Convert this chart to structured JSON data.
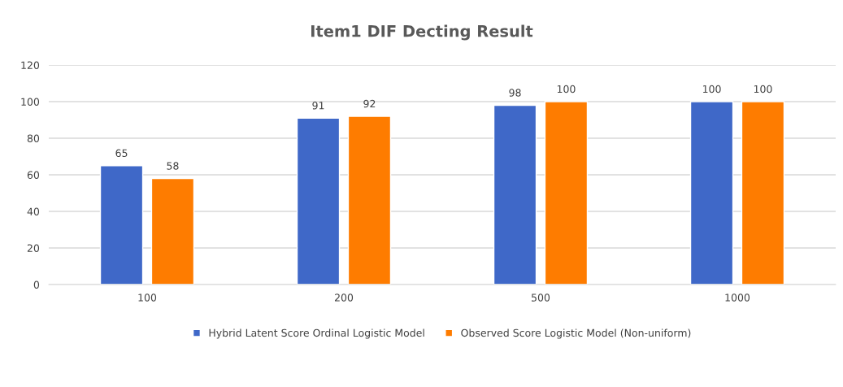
{
  "chart_data": {
    "type": "bar",
    "title": "Item1 DIF Decting Result",
    "categories": [
      "100",
      "200",
      "500",
      "1000"
    ],
    "series": [
      {
        "name": "Hybrid Latent Score Ordinal Logistic Model",
        "color": "#3f68c8",
        "values": [
          65,
          91,
          98,
          100
        ]
      },
      {
        "name": "Observed Score Logistic Model (Non-uniform)",
        "color": "#fe7c00",
        "values": [
          58,
          92,
          100,
          100
        ]
      }
    ],
    "ylim": [
      0,
      120
    ],
    "yticks": [
      0,
      20,
      40,
      60,
      80,
      100,
      120
    ],
    "grid": "y",
    "legend": "bottom",
    "data_labels": true
  }
}
